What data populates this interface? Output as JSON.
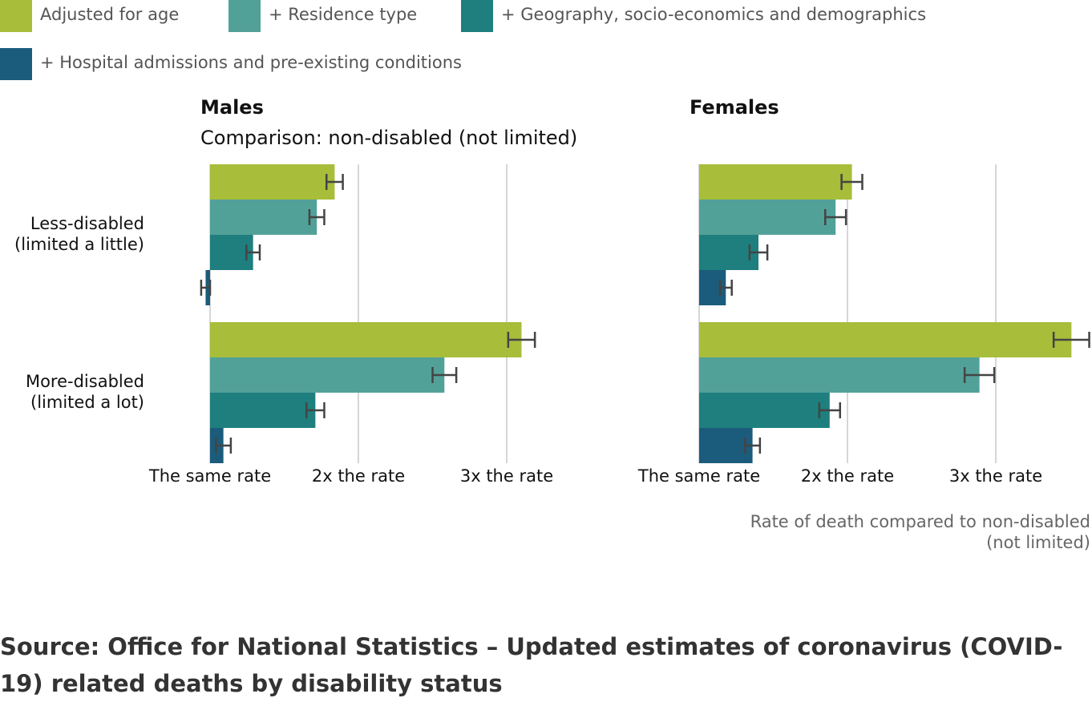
{
  "chart_data": [
    {
      "type": "bar",
      "orientation": "horizontal",
      "title": "Males",
      "subtitle": "Comparison: non-disabled (not limited)",
      "categories": [
        "Less-disabled\n(limited a little)",
        "More-disabled\n(limited a lot)"
      ],
      "series": [
        {
          "name": "Adjusted for age",
          "color": "#a8bd3a",
          "values": [
            1.84,
            3.1
          ],
          "errors": [
            0.055,
            0.09
          ]
        },
        {
          "name": "+ Residence type",
          "color": "#52a199",
          "values": [
            1.72,
            2.58
          ],
          "errors": [
            0.05,
            0.08
          ]
        },
        {
          "name": "+ Geography, socio-economics and demographics",
          "color": "#1e7f7e",
          "values": [
            1.29,
            1.71
          ],
          "errors": [
            0.045,
            0.06
          ]
        },
        {
          "name": "+ Hospital admissions and pre-existing conditions",
          "color": "#1b5c7c",
          "values": [
            0.97,
            1.09
          ],
          "errors": [
            0.03,
            0.05
          ]
        }
      ],
      "xlim": [
        0.9,
        3.65
      ],
      "xticks": [
        {
          "value": 1,
          "label": "The same rate"
        },
        {
          "value": 2,
          "label": "2x the rate"
        },
        {
          "value": 3,
          "label": "3x the rate"
        }
      ],
      "grid": true
    },
    {
      "type": "bar",
      "orientation": "horizontal",
      "title": "Females",
      "xlabel": "Rate of death compared to non-disabled\n(not limited)",
      "series": [
        {
          "values": [
            2.03,
            3.51
          ],
          "errors": [
            0.07,
            0.12
          ]
        },
        {
          "values": [
            1.92,
            2.89
          ],
          "errors": [
            0.07,
            0.1
          ]
        },
        {
          "values": [
            1.4,
            1.88
          ],
          "errors": [
            0.06,
            0.07
          ]
        },
        {
          "values": [
            1.18,
            1.36
          ],
          "errors": [
            0.04,
            0.05
          ]
        }
      ],
      "xlim": [
        0.9,
        3.65
      ],
      "xticks": [
        {
          "value": 1,
          "label": "The same rate"
        },
        {
          "value": 2,
          "label": "2x the rate"
        },
        {
          "value": 3,
          "label": "3x the rate"
        }
      ],
      "grid": true
    }
  ],
  "source": "Source: Office for National Statistics – Updated estimates of coronavirus (COVID-19) related deaths by disability status"
}
